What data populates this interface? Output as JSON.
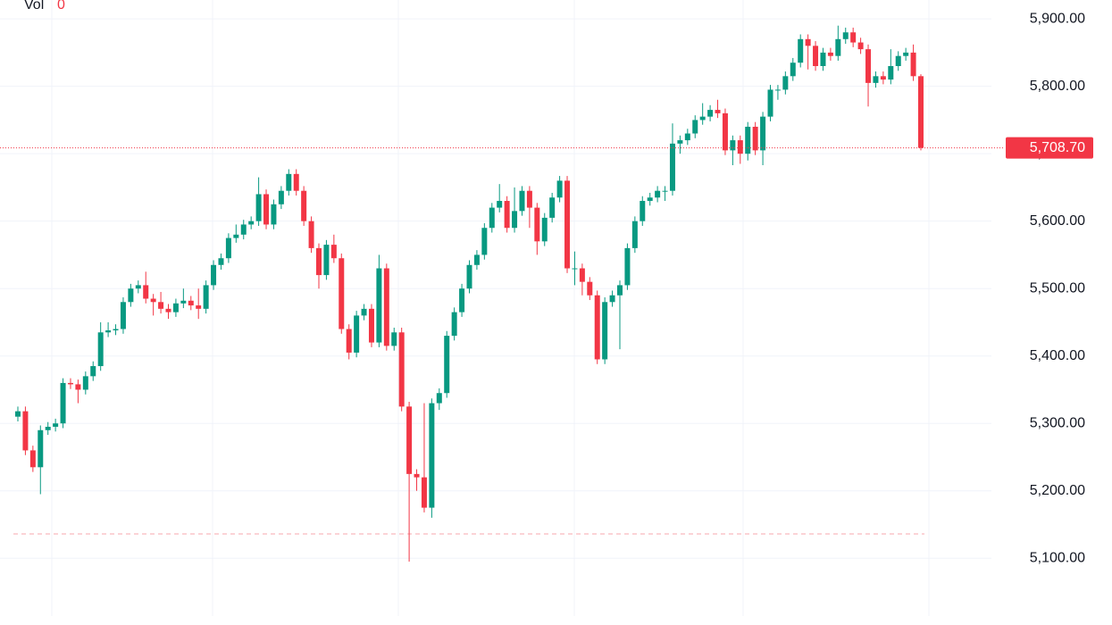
{
  "chart_data": {
    "type": "candlestick",
    "volume_label": "Vol",
    "volume_value": 0,
    "up_color": "#089981",
    "down_color": "#f23645",
    "ylim": [
      5001,
      5928
    ],
    "yticks": [
      {
        "value": 5100,
        "label": "5,100.00"
      },
      {
        "value": 5200,
        "label": "5,200.00"
      },
      {
        "value": 5300,
        "label": "5,300.00"
      },
      {
        "value": 5400,
        "label": "5,400.00"
      },
      {
        "value": 5500,
        "label": "5,500.00"
      },
      {
        "value": 5600,
        "label": "5,600.00"
      },
      {
        "value": 5700,
        "label": "5,700.00"
      },
      {
        "value": 5800,
        "label": "5,800.00"
      },
      {
        "value": 5900,
        "label": "5,900.00"
      }
    ],
    "grid": true,
    "last_price": {
      "value": 5708.7,
      "label": "5,708.70"
    },
    "reference_line": 5136,
    "open": [
      5310,
      5318,
      5260,
      5235,
      5290,
      5295,
      5300,
      5360,
      5358,
      5350,
      5370,
      5385,
      5435,
      5438,
      5440,
      5480,
      5500,
      5505,
      5485,
      5480,
      5470,
      5465,
      5478,
      5482,
      5475,
      5470,
      5505,
      5535,
      5545,
      5575,
      5580,
      5595,
      5600,
      5640,
      5595,
      5625,
      5645,
      5670,
      5645,
      5600,
      5560,
      5520,
      5565,
      5545,
      5440,
      5405,
      5460,
      5470,
      5420,
      5530,
      5415,
      5435,
      5325,
      5225,
      5220,
      5175,
      5330,
      5345,
      5430,
      5465,
      5500,
      5535,
      5550,
      5590,
      5620,
      5630,
      5590,
      5615,
      5645,
      5620,
      5570,
      5605,
      5635,
      5660,
      5530,
      5530,
      5510,
      5490,
      5395,
      5480,
      5490,
      5505,
      5560,
      5600,
      5630,
      5635,
      5645,
      5645,
      5715,
      5720,
      5730,
      5750,
      5755,
      5765,
      5760,
      5705,
      5720,
      5700,
      5740,
      5705,
      5755,
      5795,
      5795,
      5815,
      5835,
      5870,
      5860,
      5830,
      5850,
      5845,
      5870,
      5880,
      5865,
      5855,
      5805,
      5815,
      5810,
      5830,
      5845,
      5850,
      5815
    ],
    "high": [
      5325,
      5325,
      5267,
      5297,
      5302,
      5307,
      5367,
      5367,
      5365,
      5377,
      5392,
      5450,
      5450,
      5447,
      5487,
      5507,
      5512,
      5525,
      5492,
      5495,
      5477,
      5485,
      5500,
      5489,
      5500,
      5512,
      5542,
      5552,
      5582,
      5595,
      5602,
      5607,
      5665,
      5647,
      5632,
      5652,
      5677,
      5677,
      5652,
      5607,
      5567,
      5572,
      5580,
      5552,
      5447,
      5467,
      5477,
      5477,
      5550,
      5537,
      5442,
      5442,
      5332,
      5232,
      5330,
      5337,
      5352,
      5437,
      5472,
      5507,
      5542,
      5557,
      5597,
      5627,
      5655,
      5637,
      5650,
      5652,
      5652,
      5627,
      5612,
      5642,
      5667,
      5667,
      5555,
      5537,
      5517,
      5497,
      5487,
      5497,
      5512,
      5567,
      5607,
      5637,
      5642,
      5652,
      5652,
      5745,
      5727,
      5737,
      5757,
      5775,
      5772,
      5780,
      5767,
      5727,
      5727,
      5747,
      5747,
      5762,
      5802,
      5802,
      5822,
      5842,
      5877,
      5877,
      5867,
      5857,
      5857,
      5890,
      5887,
      5887,
      5872,
      5862,
      5822,
      5822,
      5855,
      5852,
      5857,
      5862,
      5818
    ],
    "low": [
      5303,
      5253,
      5228,
      5195,
      5283,
      5288,
      5293,
      5351,
      5330,
      5343,
      5363,
      5378,
      5428,
      5431,
      5433,
      5473,
      5493,
      5478,
      5460,
      5463,
      5455,
      5458,
      5471,
      5468,
      5455,
      5463,
      5498,
      5528,
      5538,
      5568,
      5573,
      5588,
      5593,
      5588,
      5588,
      5618,
      5638,
      5638,
      5593,
      5553,
      5500,
      5513,
      5538,
      5433,
      5395,
      5398,
      5453,
      5413,
      5413,
      5408,
      5408,
      5318,
      5095,
      5200,
      5168,
      5160,
      5320,
      5338,
      5423,
      5458,
      5493,
      5528,
      5543,
      5583,
      5613,
      5583,
      5583,
      5608,
      5590,
      5550,
      5563,
      5598,
      5628,
      5523,
      5505,
      5490,
      5483,
      5388,
      5388,
      5473,
      5410,
      5498,
      5553,
      5593,
      5623,
      5628,
      5630,
      5638,
      5700,
      5713,
      5723,
      5743,
      5748,
      5753,
      5698,
      5683,
      5685,
      5690,
      5698,
      5683,
      5748,
      5780,
      5788,
      5808,
      5828,
      5825,
      5823,
      5823,
      5838,
      5838,
      5863,
      5858,
      5848,
      5770,
      5798,
      5803,
      5803,
      5823,
      5838,
      5808,
      5705
    ],
    "close": [
      5318,
      5260,
      5235,
      5290,
      5295,
      5300,
      5360,
      5358,
      5350,
      5370,
      5385,
      5435,
      5438,
      5440,
      5480,
      5500,
      5505,
      5485,
      5480,
      5470,
      5465,
      5478,
      5482,
      5475,
      5470,
      5505,
      5535,
      5545,
      5575,
      5580,
      5595,
      5600,
      5640,
      5595,
      5625,
      5645,
      5670,
      5645,
      5600,
      5560,
      5520,
      5565,
      5545,
      5440,
      5405,
      5460,
      5470,
      5420,
      5530,
      5415,
      5435,
      5325,
      5225,
      5220,
      5175,
      5330,
      5345,
      5430,
      5465,
      5500,
      5535,
      5550,
      5590,
      5620,
      5630,
      5590,
      5615,
      5645,
      5620,
      5570,
      5605,
      5635,
      5660,
      5530,
      5530,
      5510,
      5490,
      5395,
      5480,
      5490,
      5505,
      5560,
      5600,
      5630,
      5635,
      5645,
      5645,
      5715,
      5720,
      5730,
      5750,
      5755,
      5765,
      5760,
      5705,
      5720,
      5700,
      5740,
      5705,
      5755,
      5795,
      5795,
      5815,
      5835,
      5870,
      5860,
      5830,
      5850,
      5845,
      5870,
      5880,
      5865,
      5855,
      5805,
      5815,
      5810,
      5830,
      5845,
      5850,
      5815,
      5708.7
    ]
  }
}
